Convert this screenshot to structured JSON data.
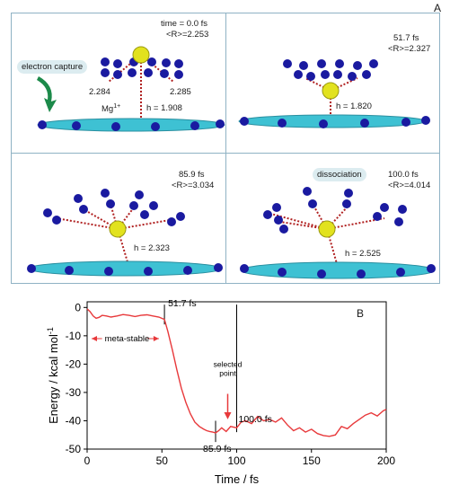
{
  "panel_a": {
    "label": "A",
    "cells": [
      {
        "time": "time = 0.0 fs",
        "r": "<R>=2.253",
        "h": "h = 1.908",
        "bond_left": "2.284",
        "bond_right": "2.285",
        "ion": "Mg",
        "ion_charge": "1+",
        "tag": "electron capture"
      },
      {
        "time": "51.7 fs",
        "r": "<R>=2.327",
        "h": "h = 1.820"
      },
      {
        "time": "85.9 fs",
        "r": "<R>=3.034",
        "h": "h = 2.323"
      },
      {
        "time": "100.0 fs",
        "r": "<R>=4.014",
        "h": "h = 2.525",
        "tag": "dissociation"
      }
    ]
  },
  "panel_b": {
    "label": "B",
    "annotations": {
      "t517": "51.7 fs",
      "t859": "85.9 fs",
      "t1000": "100.0 fs",
      "metastable": "meta-stable",
      "selected1": "selected",
      "selected2": "point"
    }
  },
  "colors": {
    "nitrogen": "#1a1aa0",
    "carbon": "#3ec1d3",
    "magnesium": "#e2e21e",
    "curve": "#e8393b",
    "bond": "#b02020",
    "frame": "#8fb2c4",
    "bubble": "#dcecf0"
  },
  "chart_data": {
    "type": "line",
    "xlabel": "Time / fs",
    "ylabel": "Energy / kcal mol",
    "ylabel_sup": "-1",
    "xlim": [
      0,
      200
    ],
    "ylim": [
      -50,
      2
    ],
    "xticks": [
      0,
      50,
      100,
      150,
      200
    ],
    "yticks": [
      0,
      -10,
      -20,
      -30,
      -40,
      -50
    ],
    "series": [
      {
        "x": [
          0,
          2,
          4,
          6,
          8,
          10,
          13,
          16,
          20,
          24,
          28,
          32,
          36,
          40,
          44,
          48,
          51.7,
          54,
          57,
          60,
          63,
          66,
          69,
          72,
          75,
          78,
          80,
          82,
          84,
          85.9,
          88,
          90,
          93,
          96,
          100,
          103,
          106,
          110,
          114,
          118,
          122,
          126,
          130,
          134,
          138,
          142,
          146,
          150,
          154,
          158,
          162,
          166,
          170,
          174,
          178,
          182,
          186,
          190,
          194,
          198,
          200
        ],
        "y": [
          -0.5,
          -1.5,
          -3.0,
          -3.8,
          -3.5,
          -2.8,
          -3.0,
          -3.4,
          -3.0,
          -2.5,
          -2.8,
          -3.2,
          -2.8,
          -2.6,
          -3.0,
          -3.4,
          -4.2,
          -8.5,
          -15.0,
          -22.0,
          -28.5,
          -33.5,
          -37.5,
          -40.5,
          -42.0,
          -43.0,
          -43.5,
          -43.8,
          -44.0,
          -44.3,
          -43.5,
          -42.5,
          -43.8,
          -42.0,
          -42.5,
          -40.5,
          -40.0,
          -41.0,
          -38.5,
          -40.0,
          -39.5,
          -40.5,
          -39.0,
          -41.5,
          -43.5,
          -42.5,
          -44.0,
          -43.0,
          -44.5,
          -45.2,
          -45.5,
          -45.0,
          -42.0,
          -42.8,
          -41.0,
          -39.5,
          -38.0,
          -37.2,
          -38.3,
          -36.5,
          -36.0
        ]
      }
    ],
    "vlines": [
      51.7,
      85.9,
      100.0
    ]
  }
}
